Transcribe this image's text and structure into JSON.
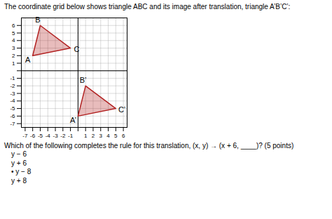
{
  "chart_data": {
    "type": "polygon",
    "title": "The coordinate grid below shows triangle ABC and its image after translation, triangle A’B’C’:",
    "question": "Which of the following completes the rule for this translation, (x, y) → (x + 6, ____)? (5 points)",
    "choices": [
      "y − 6",
      "y + 6",
      "• y − 8",
      "y + 8"
    ],
    "series": [
      {
        "x": [
          -6,
          -5,
          -1
        ],
        "y": [
          2,
          6,
          3
        ],
        "labels": [
          "A",
          "B",
          "C"
        ],
        "color": "#b22222"
      },
      {
        "x": [
          0,
          1,
          5
        ],
        "y": [
          -6,
          -2,
          -5
        ],
        "labels": [
          "A’",
          "B’",
          "C’"
        ],
        "color": "#b22222"
      }
    ],
    "xlim": [
      -7.5,
      6.5
    ],
    "ylim": [
      -7.5,
      7.0
    ],
    "xticks": [
      -7,
      -6,
      -5,
      -4,
      -3,
      -2,
      -1,
      {
        "value": 0,
        "label": null
      },
      1,
      2,
      3,
      4,
      5,
      6
    ],
    "yticks": [
      -7,
      -6,
      -5,
      -4,
      -3,
      -2,
      -1,
      {
        "value": 0,
        "label": null
      },
      1,
      2,
      3,
      4,
      5,
      6
    ],
    "grid": true
  }
}
